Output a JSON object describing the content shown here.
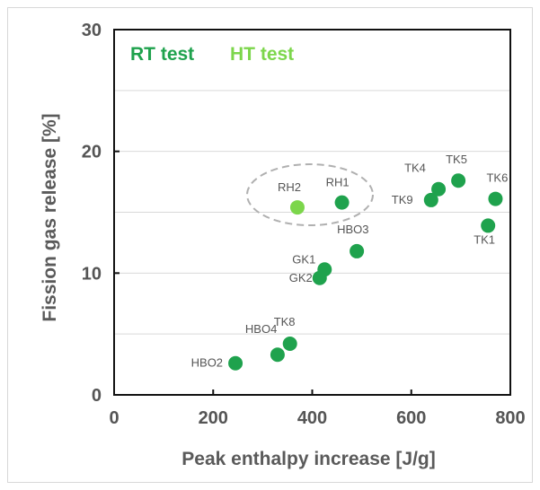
{
  "chart_data": {
    "type": "scatter",
    "xlabel": "Peak enthalpy increase [J/g]",
    "ylabel": "Fission gas release [%]",
    "xlim": [
      0,
      800
    ],
    "ylim": [
      0,
      30
    ],
    "xticks": [
      "0",
      "200",
      "400",
      "600",
      "800"
    ],
    "yticks": [
      "0",
      "10",
      "20",
      "30"
    ],
    "grid": "horizontal",
    "legend": "top-left",
    "colors": {
      "rt": "#1fa24d",
      "ht": "#7cd64b"
    },
    "series": [
      {
        "name": "RT test",
        "points": [
          {
            "label": "HBO2",
            "x": 245,
            "y": 2.6
          },
          {
            "label": "HBO4",
            "x": 330,
            "y": 3.3
          },
          {
            "label": "TK8",
            "x": 355,
            "y": 4.2
          },
          {
            "label": "GK2",
            "x": 415,
            "y": 9.6
          },
          {
            "label": "GK1",
            "x": 425,
            "y": 10.3
          },
          {
            "label": "HBO3",
            "x": 490,
            "y": 11.8
          },
          {
            "label": "RH1",
            "x": 460,
            "y": 15.8
          },
          {
            "label": "TK9",
            "x": 640,
            "y": 16.0
          },
          {
            "label": "TK4",
            "x": 655,
            "y": 16.9
          },
          {
            "label": "TK5",
            "x": 695,
            "y": 17.6
          },
          {
            "label": "TK6",
            "x": 770,
            "y": 16.1
          },
          {
            "label": "TK1",
            "x": 755,
            "y": 13.9
          }
        ]
      },
      {
        "name": "HT test",
        "points": [
          {
            "label": "RH2",
            "x": 370,
            "y": 15.4
          }
        ]
      }
    ]
  }
}
